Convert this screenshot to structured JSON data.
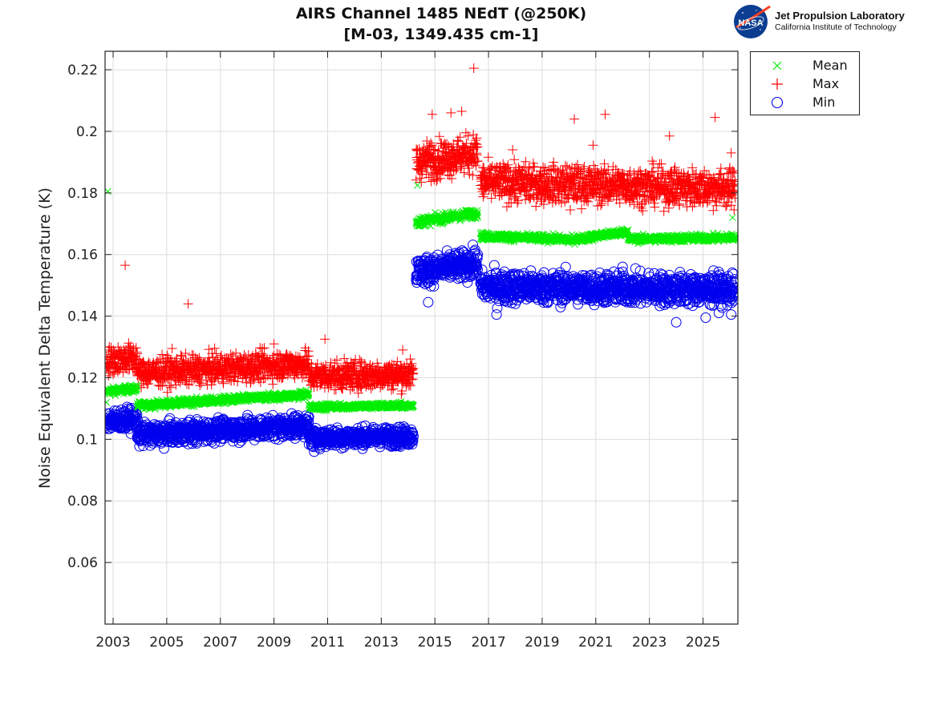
{
  "chart_data": {
    "type": "scatter",
    "title": "AIRS Channel 1485 NEdT (@250K)",
    "subtitle": "[M-03, 1349.435 cm-1]",
    "xlabel": "",
    "ylabel": "Noise Equivalent Delta Temperature (K)",
    "xlim": [
      2002.7,
      2026.3
    ],
    "ylim": [
      0.04,
      0.226
    ],
    "grid": true,
    "legend_position": "outside-top-right",
    "x_ticks": [
      2003,
      2005,
      2007,
      2009,
      2011,
      2013,
      2015,
      2017,
      2019,
      2021,
      2023,
      2025
    ],
    "x_tick_labels": [
      "2003",
      "2005",
      "2007",
      "2009",
      "2011",
      "2013",
      "2015",
      "2017",
      "2019",
      "2021",
      "2023",
      "2025"
    ],
    "y_ticks": [
      0.06,
      0.08,
      0.1,
      0.12,
      0.14,
      0.16,
      0.18,
      0.2,
      0.22
    ],
    "y_tick_labels": [
      "0.06",
      "0.08",
      "0.1",
      "0.12",
      "0.14",
      "0.16",
      "0.18",
      "0.2",
      "0.22"
    ],
    "series": [
      {
        "name": "Mean",
        "marker": "x",
        "color": "#00ee00",
        "segments": [
          {
            "x_start": 2002.75,
            "x_end": 2003.9,
            "y_start": 0.1155,
            "y_end": 0.1165,
            "spread": 0.0012
          },
          {
            "x_start": 2003.9,
            "x_end": 2010.3,
            "y_start": 0.111,
            "y_end": 0.1145,
            "spread": 0.0012
          },
          {
            "x_start": 2010.3,
            "x_end": 2014.2,
            "y_start": 0.1105,
            "y_end": 0.111,
            "spread": 0.001
          },
          {
            "x_start": 2014.3,
            "x_end": 2016.6,
            "y_start": 0.1705,
            "y_end": 0.1735,
            "spread": 0.0015
          },
          {
            "x_start": 2016.7,
            "x_end": 2019.9,
            "y_start": 0.166,
            "y_end": 0.165,
            "spread": 0.0012
          },
          {
            "x_start": 2019.9,
            "x_end": 2022.2,
            "y_start": 0.1645,
            "y_end": 0.1675,
            "spread": 0.0012
          },
          {
            "x_start": 2022.2,
            "x_end": 2026.2,
            "y_start": 0.165,
            "y_end": 0.1655,
            "spread": 0.0012
          }
        ],
        "outliers": [
          {
            "x": 2002.8,
            "y": 0.1805
          },
          {
            "x": 2002.75,
            "y": 0.112
          },
          {
            "x": 2014.35,
            "y": 0.1825
          },
          {
            "x": 2026.1,
            "y": 0.172
          },
          {
            "x": 2010.2,
            "y": 0.116
          }
        ]
      },
      {
        "name": "Max",
        "marker": "+",
        "color": "#ff0000",
        "segments": [
          {
            "x_start": 2002.75,
            "x_end": 2003.9,
            "y_start": 0.1255,
            "y_end": 0.1265,
            "spread": 0.0045
          },
          {
            "x_start": 2003.9,
            "x_end": 2010.3,
            "y_start": 0.1215,
            "y_end": 0.1245,
            "spread": 0.0045
          },
          {
            "x_start": 2010.3,
            "x_end": 2014.2,
            "y_start": 0.1205,
            "y_end": 0.121,
            "spread": 0.0045
          },
          {
            "x_start": 2014.3,
            "x_end": 2016.6,
            "y_start": 0.19,
            "y_end": 0.193,
            "spread": 0.006
          },
          {
            "x_start": 2016.7,
            "x_end": 2026.2,
            "y_start": 0.1835,
            "y_end": 0.1815,
            "spread": 0.006
          }
        ],
        "outliers": [
          {
            "x": 2003.45,
            "y": 0.1565
          },
          {
            "x": 2005.8,
            "y": 0.144
          },
          {
            "x": 2010.9,
            "y": 0.1325
          },
          {
            "x": 2009.0,
            "y": 0.131
          },
          {
            "x": 2005.2,
            "y": 0.1295
          },
          {
            "x": 2013.8,
            "y": 0.129
          },
          {
            "x": 2016.45,
            "y": 0.2205
          },
          {
            "x": 2014.9,
            "y": 0.2055
          },
          {
            "x": 2015.6,
            "y": 0.206
          },
          {
            "x": 2016.0,
            "y": 0.2065
          },
          {
            "x": 2020.2,
            "y": 0.204
          },
          {
            "x": 2021.35,
            "y": 0.2055
          },
          {
            "x": 2025.45,
            "y": 0.2045
          },
          {
            "x": 2023.75,
            "y": 0.1985
          },
          {
            "x": 2017.9,
            "y": 0.194
          },
          {
            "x": 2020.9,
            "y": 0.1955
          },
          {
            "x": 2020.05,
            "y": 0.1745
          },
          {
            "x": 2024.4,
            "y": 0.1755
          },
          {
            "x": 2026.05,
            "y": 0.193
          }
        ]
      },
      {
        "name": "Min",
        "marker": "o",
        "color": "#0000ee",
        "segments": [
          {
            "x_start": 2002.75,
            "x_end": 2003.9,
            "y_start": 0.106,
            "y_end": 0.1065,
            "spread": 0.0035
          },
          {
            "x_start": 2003.9,
            "x_end": 2010.3,
            "y_start": 0.1015,
            "y_end": 0.1045,
            "spread": 0.0035
          },
          {
            "x_start": 2010.3,
            "x_end": 2014.2,
            "y_start": 0.1005,
            "y_end": 0.101,
            "spread": 0.003
          },
          {
            "x_start": 2014.3,
            "x_end": 2016.6,
            "y_start": 0.1545,
            "y_end": 0.157,
            "spread": 0.0045
          },
          {
            "x_start": 2016.7,
            "x_end": 2026.2,
            "y_start": 0.1495,
            "y_end": 0.1485,
            "spread": 0.005
          }
        ],
        "outliers": [
          {
            "x": 2004.9,
            "y": 0.097
          },
          {
            "x": 2010.5,
            "y": 0.096
          },
          {
            "x": 2014.75,
            "y": 0.1445
          },
          {
            "x": 2017.3,
            "y": 0.1405
          },
          {
            "x": 2024.0,
            "y": 0.138
          },
          {
            "x": 2025.1,
            "y": 0.1395
          },
          {
            "x": 2026.05,
            "y": 0.1405
          },
          {
            "x": 2022.0,
            "y": 0.156
          },
          {
            "x": 2016.5,
            "y": 0.1615
          }
        ]
      }
    ]
  },
  "logo": {
    "badge_text": "NASA",
    "name": "Jet Propulsion Laboratory",
    "subtitle": "California Institute of Technology"
  }
}
